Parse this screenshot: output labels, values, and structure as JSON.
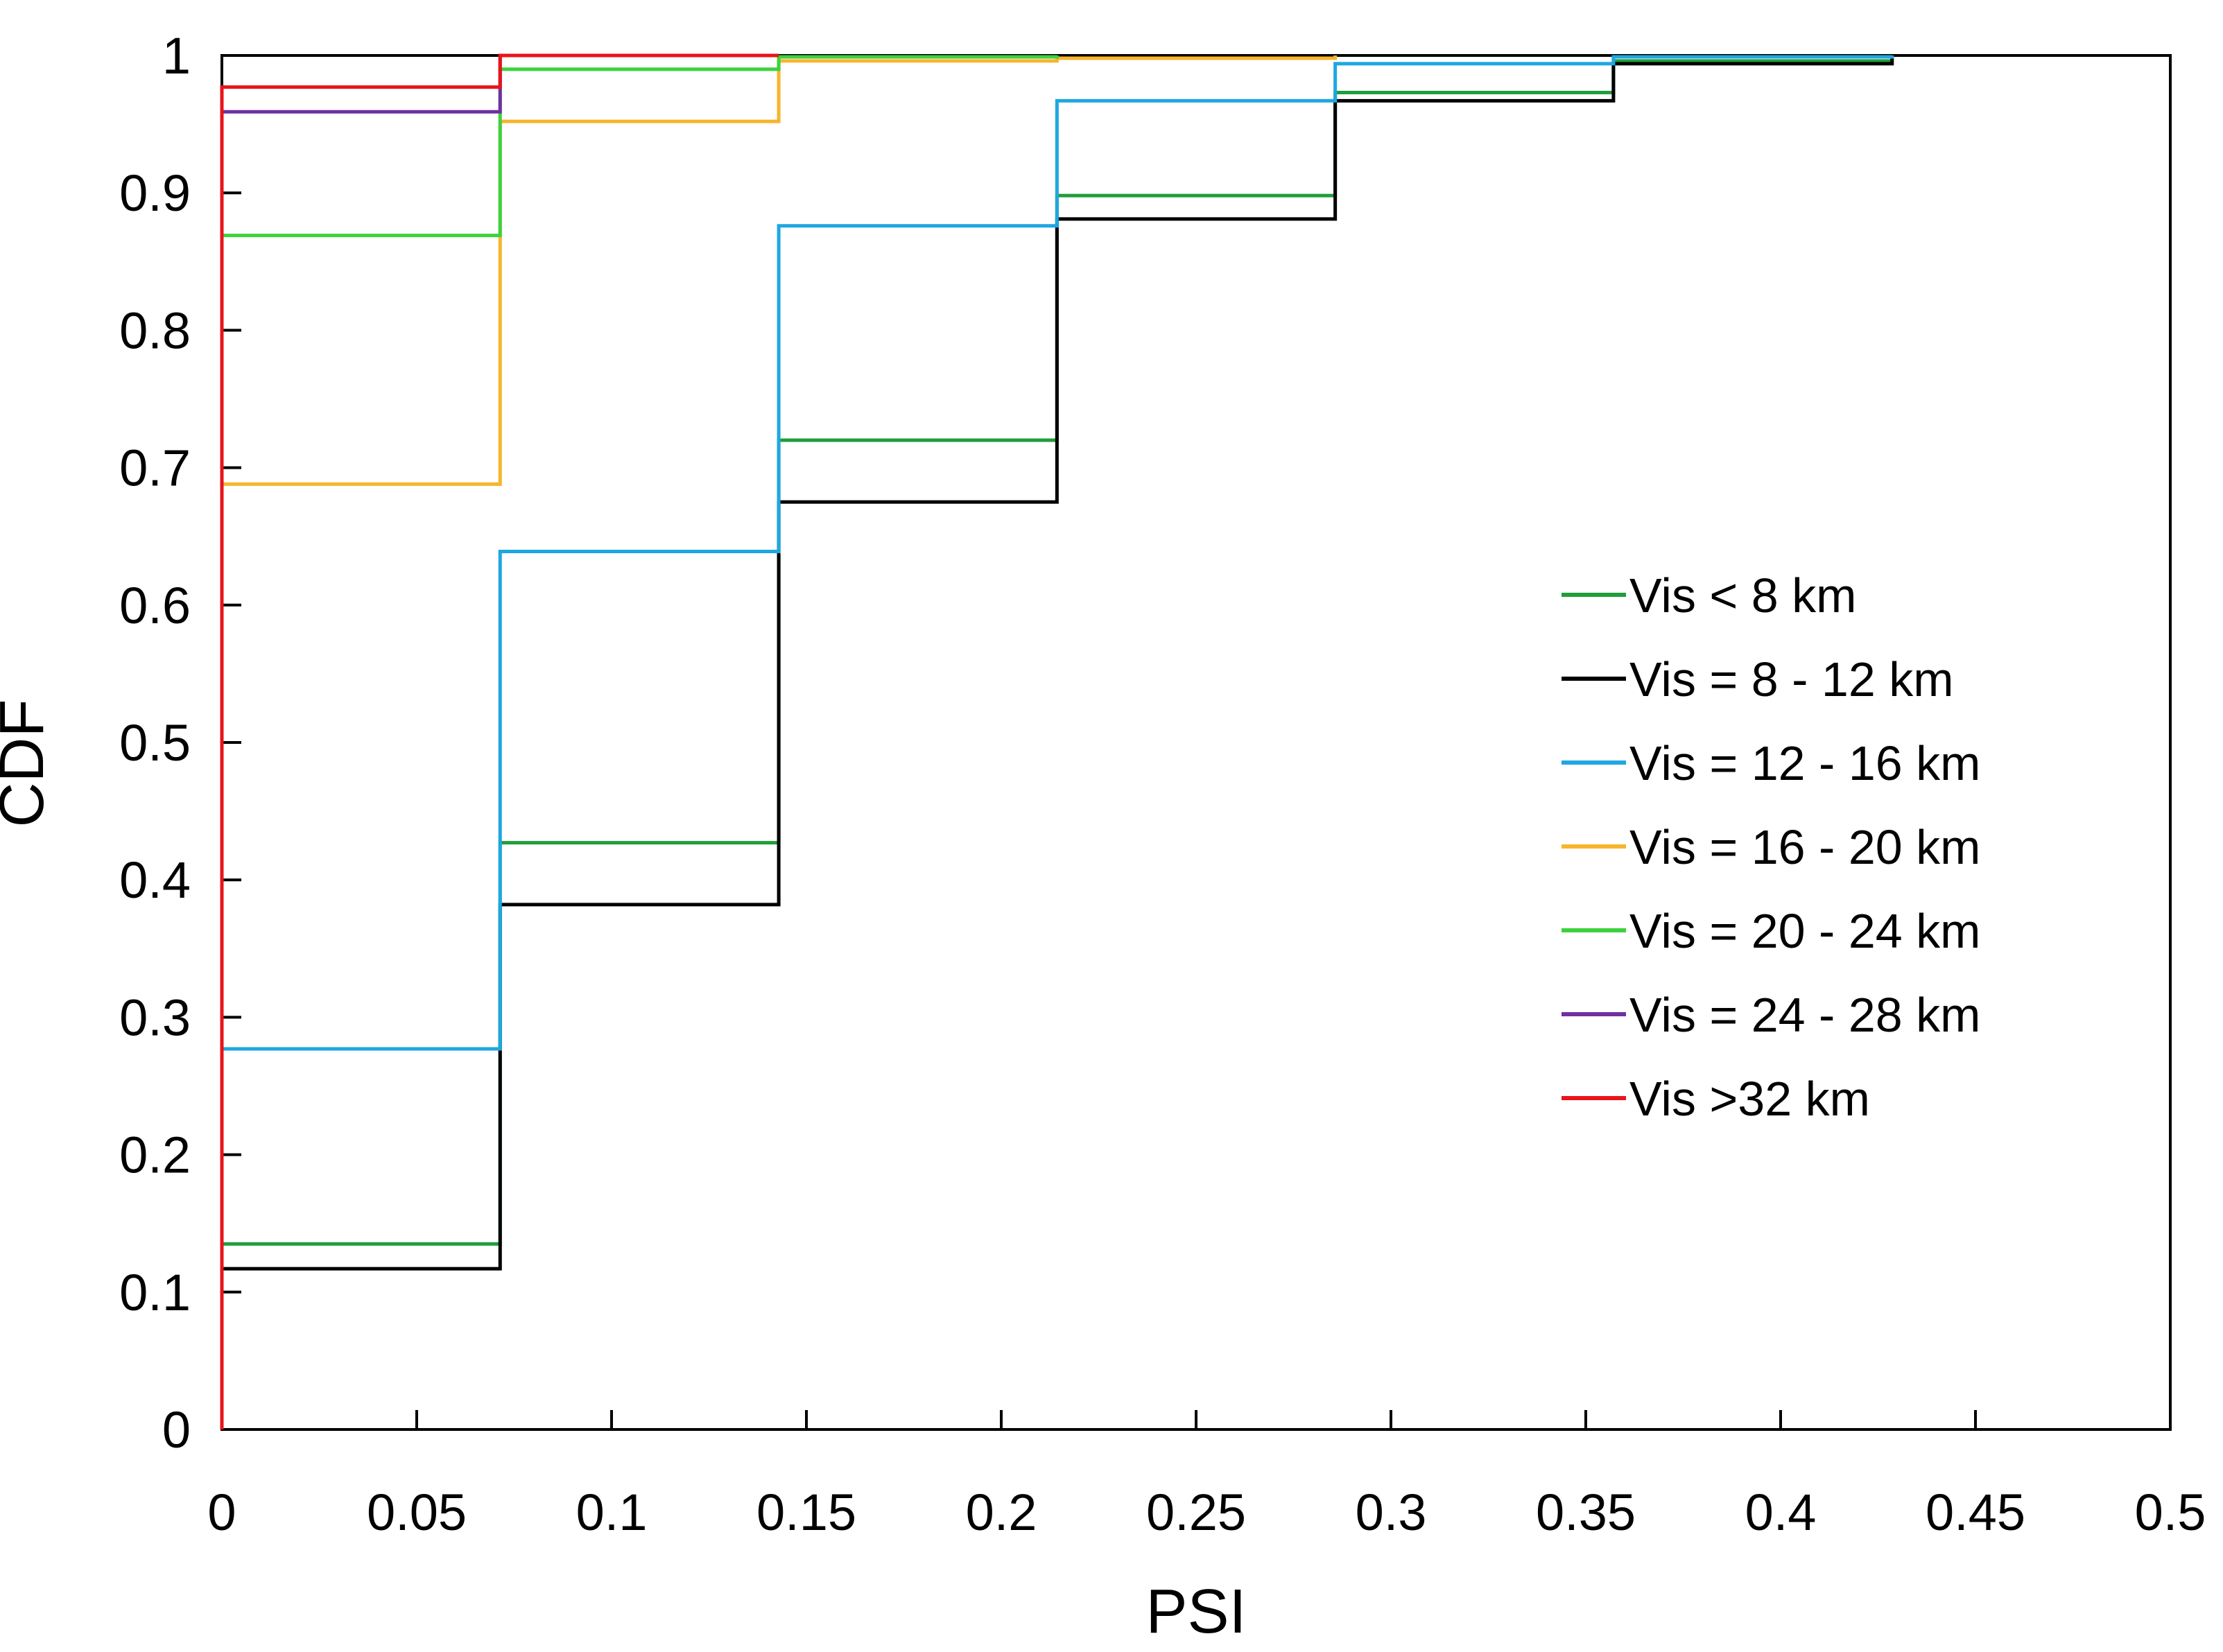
{
  "chart_data": {
    "type": "line",
    "step": "post",
    "title": "",
    "xlabel": "PSI",
    "ylabel": "CDF",
    "xlim": [
      0,
      0.5
    ],
    "ylim": [
      0,
      1
    ],
    "grid": false,
    "legend_position": "right",
    "xticks": [
      "0",
      "0.05",
      "0.1",
      "0.15",
      "0.2",
      "0.25",
      "0.3",
      "0.35",
      "0.4",
      "0.45",
      "0.5"
    ],
    "yticks": [
      "0",
      "0.1",
      "0.2",
      "0.3",
      "0.4",
      "0.5",
      "0.6",
      "0.7",
      "0.8",
      "0.9",
      "1"
    ],
    "series": [
      {
        "name": "Vis < 8 km",
        "color": "#1f9e3a",
        "x": [
          0,
          0.0714,
          0.1429,
          0.2143,
          0.2857,
          0.3571,
          0.4286
        ],
        "y": [
          0.135,
          0.427,
          0.72,
          0.898,
          0.973,
          0.996,
          1.0
        ]
      },
      {
        "name": "Vis = 8 - 12 km",
        "color": "#000000",
        "x": [
          0,
          0.0714,
          0.1429,
          0.2143,
          0.2857,
          0.3571,
          0.4286
        ],
        "y": [
          0.117,
          0.382,
          0.675,
          0.881,
          0.967,
          0.994,
          1.0
        ]
      },
      {
        "name": "Vis = 12 - 16 km",
        "color": "#1ea7e1",
        "x": [
          0,
          0.0714,
          0.1429,
          0.2143,
          0.2857,
          0.3571,
          0.4286
        ],
        "y": [
          0.277,
          0.639,
          0.876,
          0.967,
          0.994,
          0.999,
          1.0
        ]
      },
      {
        "name": "Vis = 16 - 20 km",
        "color": "#f7b52c",
        "x": [
          0,
          0.0714,
          0.1429,
          0.2143,
          0.2857
        ],
        "y": [
          0.688,
          0.952,
          0.996,
          0.998,
          1.0
        ]
      },
      {
        "name": "Vis = 20 - 24 km",
        "color": "#3cd23c",
        "x": [
          0,
          0.0714,
          0.1429,
          0.2143
        ],
        "y": [
          0.869,
          0.99,
          0.999,
          1.0
        ]
      },
      {
        "name": "Vis = 24 - 28 km",
        "color": "#7030a0",
        "x": [
          0,
          0.0714
        ],
        "y": [
          0.959,
          1.0
        ]
      },
      {
        "name": "Vis >32 km",
        "color": "#e8141b",
        "x": [
          0,
          0.0714,
          0.1429
        ],
        "y": [
          0.977,
          1.0,
          1.0
        ]
      }
    ]
  }
}
